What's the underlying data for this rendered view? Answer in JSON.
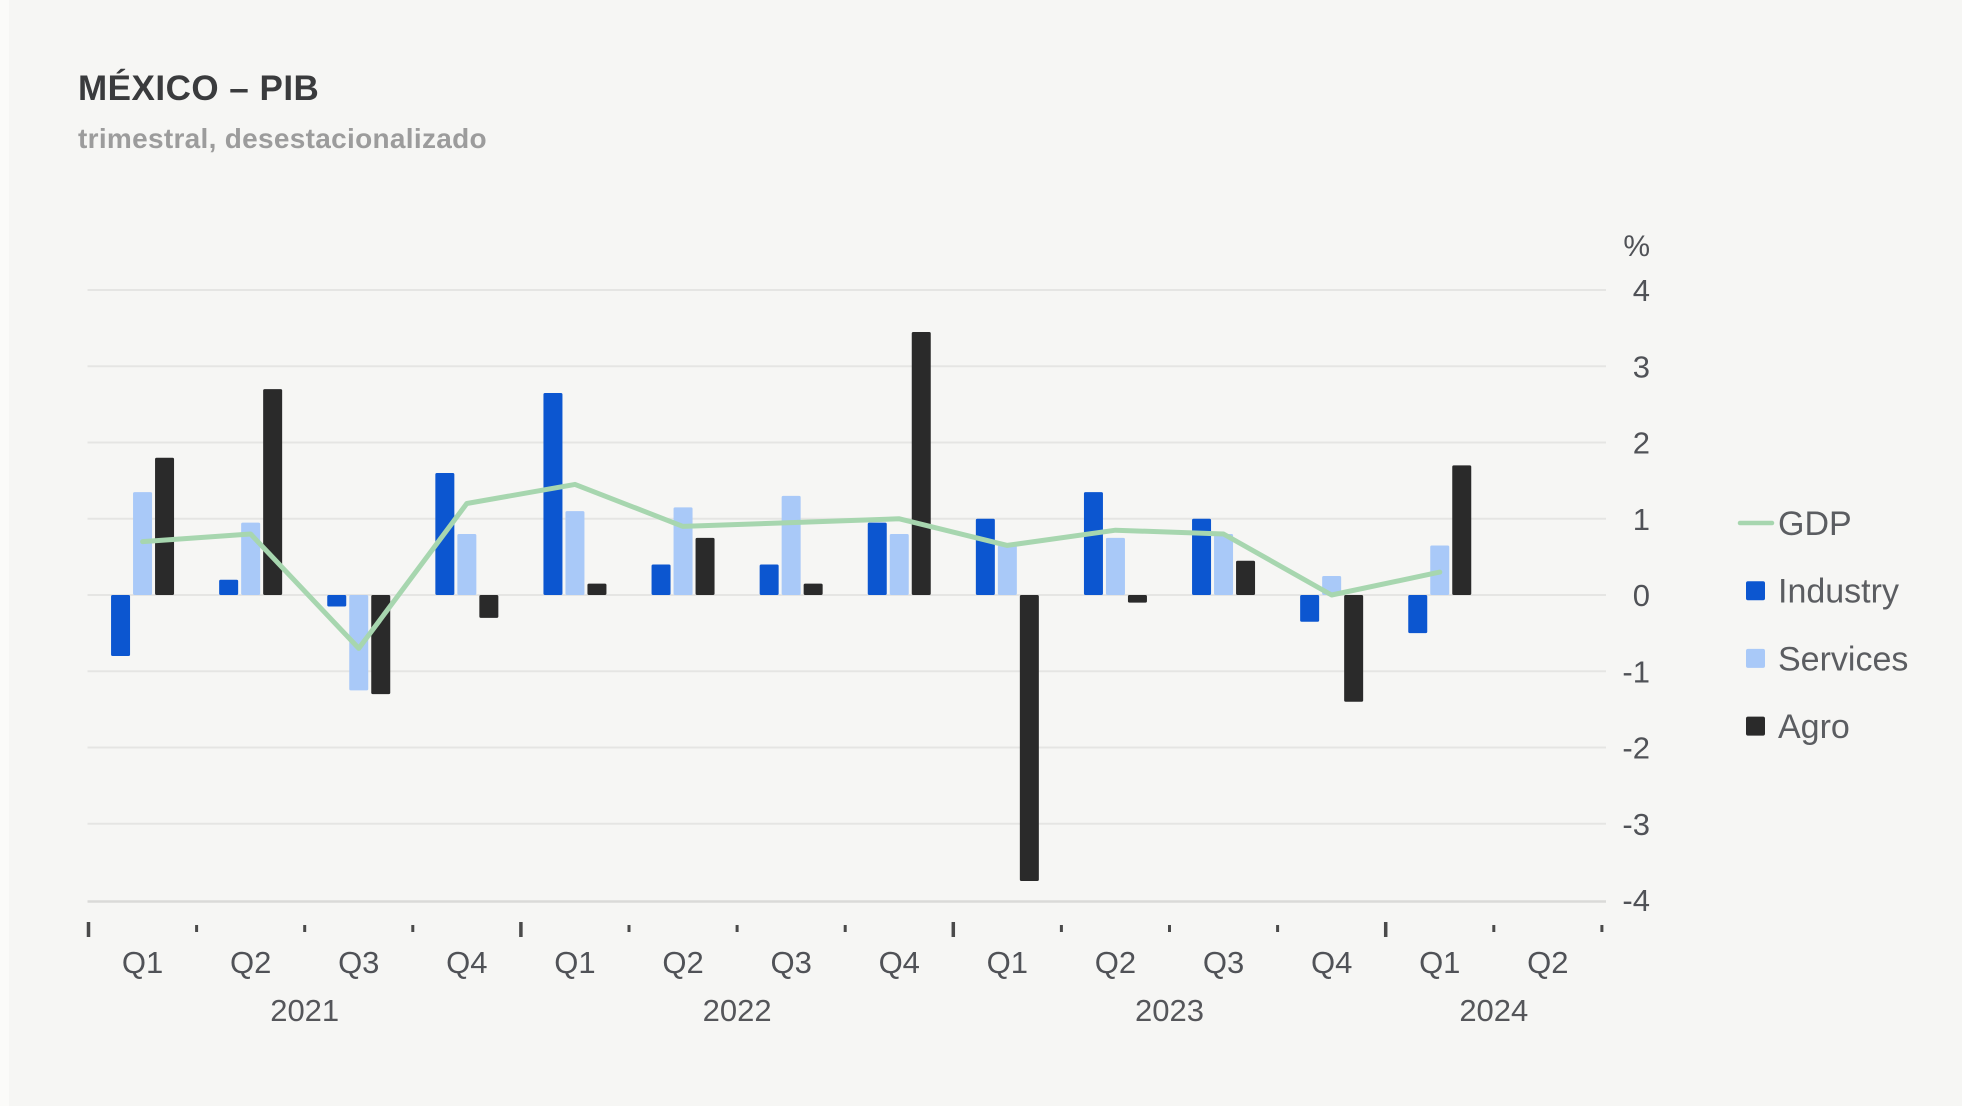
{
  "header": {
    "title": "MÉXICO – PIB",
    "subtitle": "trimestral, desestacionalizado"
  },
  "y_axis": {
    "unit_label": "%",
    "ticks": [
      4,
      3,
      2,
      1,
      0,
      -1,
      -2,
      -3,
      -4
    ],
    "min": -4,
    "max": 4
  },
  "x_axis": {
    "quarter_labels": [
      "Q1",
      "Q2",
      "Q3",
      "Q4",
      "Q1",
      "Q2",
      "Q3",
      "Q4",
      "Q1",
      "Q2",
      "Q3",
      "Q4",
      "Q1",
      "Q2"
    ],
    "year_groups": [
      {
        "label": "2021",
        "start": 0,
        "count": 4
      },
      {
        "label": "2022",
        "start": 4,
        "count": 4
      },
      {
        "label": "2023",
        "start": 8,
        "count": 4
      },
      {
        "label": "2024",
        "start": 12,
        "count": 2
      }
    ]
  },
  "legend": [
    {
      "label": "GDP",
      "type": "line",
      "color": "#a7d6af"
    },
    {
      "label": "Industry",
      "type": "square",
      "color": "#0c56d0"
    },
    {
      "label": "Services",
      "type": "square",
      "color": "#a9c9f8"
    },
    {
      "label": "Agro",
      "type": "square",
      "color": "#2a2a2a"
    }
  ],
  "chart_data": {
    "type": "bar",
    "title": "MÉXICO – PIB",
    "subtitle": "trimestral, desestacionalizado",
    "ylabel": "%",
    "ylim": [
      -4,
      4
    ],
    "grid": true,
    "legend_position": "right",
    "categories": [
      "Q1 2021",
      "Q2 2021",
      "Q3 2021",
      "Q4 2021",
      "Q1 2022",
      "Q2 2022",
      "Q3 2022",
      "Q4 2022",
      "Q1 2023",
      "Q2 2023",
      "Q3 2023",
      "Q4 2023",
      "Q1 2024",
      "Q2 2024"
    ],
    "series": [
      {
        "name": "GDP",
        "type": "line",
        "color": "#a7d6af",
        "values": [
          0.7,
          0.8,
          -0.7,
          1.2,
          1.45,
          0.9,
          0.95,
          1.0,
          0.65,
          0.85,
          0.8,
          0.0,
          0.3,
          null
        ]
      },
      {
        "name": "Industry",
        "type": "bar",
        "color": "#0c56d0",
        "values": [
          -0.8,
          0.2,
          -0.15,
          1.6,
          2.65,
          0.4,
          0.4,
          0.95,
          1.0,
          1.35,
          1.0,
          -0.35,
          -0.5,
          null
        ]
      },
      {
        "name": "Services",
        "type": "bar",
        "color": "#a9c9f8",
        "values": [
          1.35,
          0.95,
          -1.25,
          0.8,
          1.1,
          1.15,
          1.3,
          0.8,
          0.65,
          0.75,
          0.8,
          0.25,
          0.65,
          null
        ]
      },
      {
        "name": "Agro",
        "type": "bar",
        "color": "#2a2a2a",
        "values": [
          1.8,
          2.7,
          -1.3,
          -0.3,
          0.15,
          0.75,
          0.15,
          3.45,
          -3.75,
          -0.1,
          0.45,
          -1.4,
          1.7,
          null
        ]
      }
    ]
  },
  "colors": {
    "background": "#f6f6f4",
    "gridline": "#e5e5e3",
    "axis_line": "#dadad8",
    "tick": "#4a4a4a",
    "axis_text": "#505257",
    "year_text": "#55565a",
    "legend_text": "#5b5d61",
    "title_text": "#3a3b3d",
    "subtitle_text": "#9c9c9c"
  }
}
